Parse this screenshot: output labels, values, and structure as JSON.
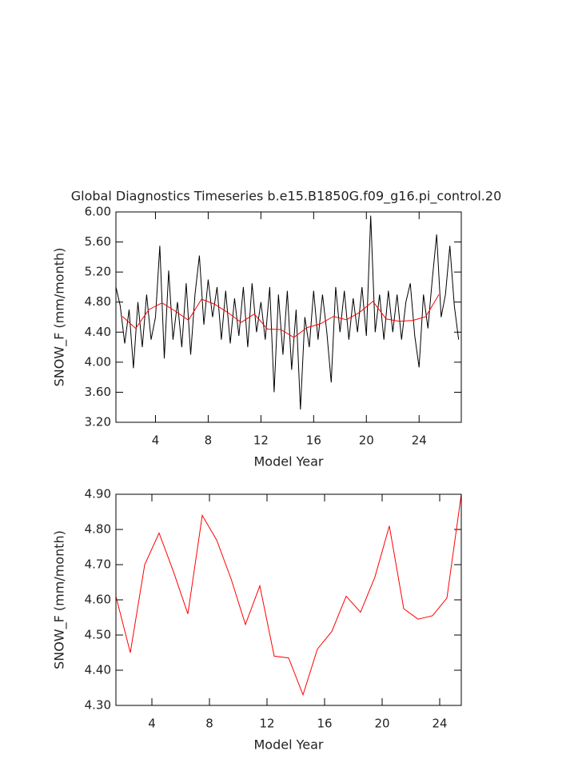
{
  "chart_data": [
    {
      "type": "line",
      "title": "Global Diagnostics Timeseries b.e15.B1850G.f09_g16.pi_control.20",
      "xlabel": "Model Year",
      "ylabel": "SNOW_F (mm/month)",
      "xlim": [
        1,
        27.2
      ],
      "ylim": [
        3.2,
        6.0
      ],
      "xticks": [
        4,
        8,
        12,
        16,
        20,
        24
      ],
      "yticks": [
        {
          "value": 3.2,
          "label": "3.20"
        },
        {
          "value": 3.6,
          "label": "3.60"
        },
        {
          "value": 4.0,
          "label": "4.00"
        },
        {
          "value": 4.4,
          "label": "4.40"
        },
        {
          "value": 4.8,
          "label": "4.80"
        },
        {
          "value": 5.2,
          "label": "5.20"
        },
        {
          "value": 5.6,
          "label": "5.60"
        },
        {
          "value": 6.0,
          "label": "6.00"
        }
      ],
      "series": [
        {
          "color": "#000000",
          "x": [
            1.0,
            1.33,
            1.67,
            2.0,
            2.33,
            2.67,
            3.0,
            3.33,
            3.67,
            4.0,
            4.33,
            4.67,
            5.0,
            5.33,
            5.67,
            6.0,
            6.33,
            6.67,
            7.0,
            7.33,
            7.67,
            8.0,
            8.33,
            8.67,
            9.0,
            9.33,
            9.67,
            10.0,
            10.33,
            10.67,
            11.0,
            11.33,
            11.67,
            12.0,
            12.33,
            12.67,
            13.0,
            13.33,
            13.67,
            14.0,
            14.33,
            14.67,
            15.0,
            15.33,
            15.67,
            16.0,
            16.33,
            16.67,
            17.0,
            17.33,
            17.67,
            18.0,
            18.33,
            18.67,
            19.0,
            19.33,
            19.67,
            20.0,
            20.33,
            20.67,
            21.0,
            21.33,
            21.67,
            22.0,
            22.33,
            22.67,
            23.0,
            23.33,
            23.67,
            24.0,
            24.33,
            24.67,
            25.0,
            25.33,
            25.67,
            26.0,
            26.33,
            26.67,
            27.0
          ],
          "values": [
            5.0,
            4.75,
            4.25,
            4.7,
            3.92,
            4.8,
            4.2,
            4.9,
            4.3,
            4.6,
            5.55,
            4.05,
            5.22,
            4.3,
            4.8,
            4.2,
            5.05,
            4.1,
            4.9,
            5.42,
            4.5,
            5.1,
            4.6,
            5.0,
            4.3,
            4.95,
            4.25,
            4.85,
            4.35,
            5.0,
            4.2,
            5.05,
            4.4,
            4.8,
            4.3,
            5.0,
            3.6,
            4.9,
            4.1,
            4.95,
            3.9,
            4.7,
            3.37,
            4.6,
            4.2,
            4.95,
            4.3,
            4.9,
            4.4,
            3.73,
            5.0,
            4.4,
            4.95,
            4.3,
            4.85,
            4.4,
            5.0,
            4.35,
            5.95,
            4.4,
            4.9,
            4.3,
            4.95,
            4.4,
            4.9,
            4.3,
            4.8,
            5.05,
            4.35,
            3.93,
            4.9,
            4.45,
            5.1,
            5.7,
            4.6,
            4.9,
            5.55,
            4.75,
            4.3
          ]
        },
        {
          "color": "#ff0000",
          "x": [
            1.5,
            2.5,
            3.5,
            4.5,
            5.5,
            6.5,
            7.5,
            8.5,
            9.5,
            10.5,
            11.5,
            12.5,
            13.5,
            14.5,
            15.5,
            16.5,
            17.5,
            18.5,
            19.5,
            20.5,
            21.5,
            22.5,
            23.5,
            24.5,
            25.5
          ],
          "values": [
            4.61,
            4.45,
            4.7,
            4.79,
            4.68,
            4.56,
            4.84,
            4.77,
            4.66,
            4.53,
            4.64,
            4.44,
            4.435,
            4.33,
            4.46,
            4.51,
            4.61,
            4.565,
            4.665,
            4.81,
            4.575,
            4.545,
            4.555,
            4.605,
            4.9
          ]
        }
      ]
    },
    {
      "type": "line",
      "xlabel": "Model Year",
      "ylabel": "SNOW_F (mm/month)",
      "xlim": [
        1.5,
        25.5
      ],
      "ylim": [
        4.3,
        4.9
      ],
      "xticks": [
        4,
        8,
        12,
        16,
        20,
        24
      ],
      "yticks": [
        {
          "value": 4.3,
          "label": "4.30"
        },
        {
          "value": 4.4,
          "label": "4.40"
        },
        {
          "value": 4.5,
          "label": "4.50"
        },
        {
          "value": 4.6,
          "label": "4.60"
        },
        {
          "value": 4.7,
          "label": "4.70"
        },
        {
          "value": 4.8,
          "label": "4.80"
        },
        {
          "value": 4.9,
          "label": "4.90"
        }
      ],
      "series": [
        {
          "color": "#ff0000",
          "x": [
            1.5,
            2.5,
            3.5,
            4.5,
            5.5,
            6.5,
            7.5,
            8.5,
            9.5,
            10.5,
            11.5,
            12.5,
            13.5,
            14.5,
            15.5,
            16.5,
            17.5,
            18.5,
            19.5,
            20.5,
            21.5,
            22.5,
            23.5,
            24.5,
            25.5
          ],
          "values": [
            4.61,
            4.45,
            4.7,
            4.79,
            4.68,
            4.56,
            4.84,
            4.77,
            4.66,
            4.53,
            4.64,
            4.44,
            4.435,
            4.33,
            4.46,
            4.51,
            4.61,
            4.565,
            4.665,
            4.81,
            4.575,
            4.545,
            4.555,
            4.605,
            4.9
          ]
        }
      ]
    }
  ]
}
